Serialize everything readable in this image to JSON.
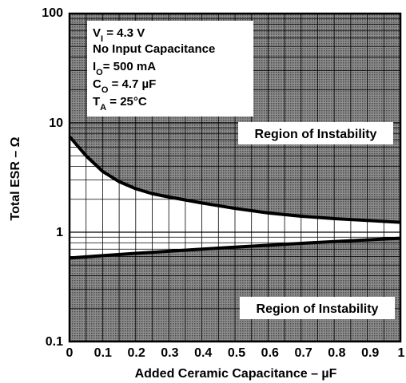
{
  "chart_data": {
    "type": "line",
    "xlabel": "Added Ceramic Capacitance – µF",
    "ylabel": "Total ESR – Ω",
    "xlim": [
      0,
      1
    ],
    "ylim": [
      0.1,
      100
    ],
    "yscale": "log",
    "grid": true,
    "x_ticks": [
      "0",
      "0.1",
      "0.2",
      "0.3",
      "0.4",
      "0.5",
      "0.6",
      "0.7",
      "0.8",
      "0.9",
      "1"
    ],
    "y_ticks": [
      "0.1",
      "1",
      "10",
      "100"
    ],
    "conditions": {
      "vi": {
        "main": "V",
        "sub": "I",
        "rest": " = 4.3 V"
      },
      "input": {
        "main": "No Input Capacitance",
        "sub": "",
        "rest": ""
      },
      "io": {
        "main": "I",
        "sub": "O",
        "rest": "= 500 mA"
      },
      "co": {
        "main": "C",
        "sub": "O",
        "rest": " = 4.7 µF"
      },
      "ta": {
        "main": "T",
        "sub": "A",
        "rest": " = 25°C"
      }
    },
    "region_upper_label": "Region of Instability",
    "region_lower_label": "Region of Instability",
    "series": [
      {
        "x": [
          0,
          0.05,
          0.1,
          0.15,
          0.2,
          0.25,
          0.3,
          0.4,
          0.5,
          0.6,
          0.7,
          0.8,
          0.9,
          1.0
        ],
        "y": [
          7.5,
          5.0,
          3.6,
          2.9,
          2.5,
          2.25,
          2.1,
          1.85,
          1.65,
          1.5,
          1.4,
          1.33,
          1.28,
          1.23
        ]
      },
      {
        "x": [
          0,
          0.1,
          0.2,
          0.3,
          0.4,
          0.5,
          0.6,
          0.7,
          0.8,
          0.9,
          1.0
        ],
        "y": [
          0.58,
          0.61,
          0.64,
          0.67,
          0.7,
          0.73,
          0.76,
          0.79,
          0.82,
          0.85,
          0.88
        ]
      }
    ]
  }
}
